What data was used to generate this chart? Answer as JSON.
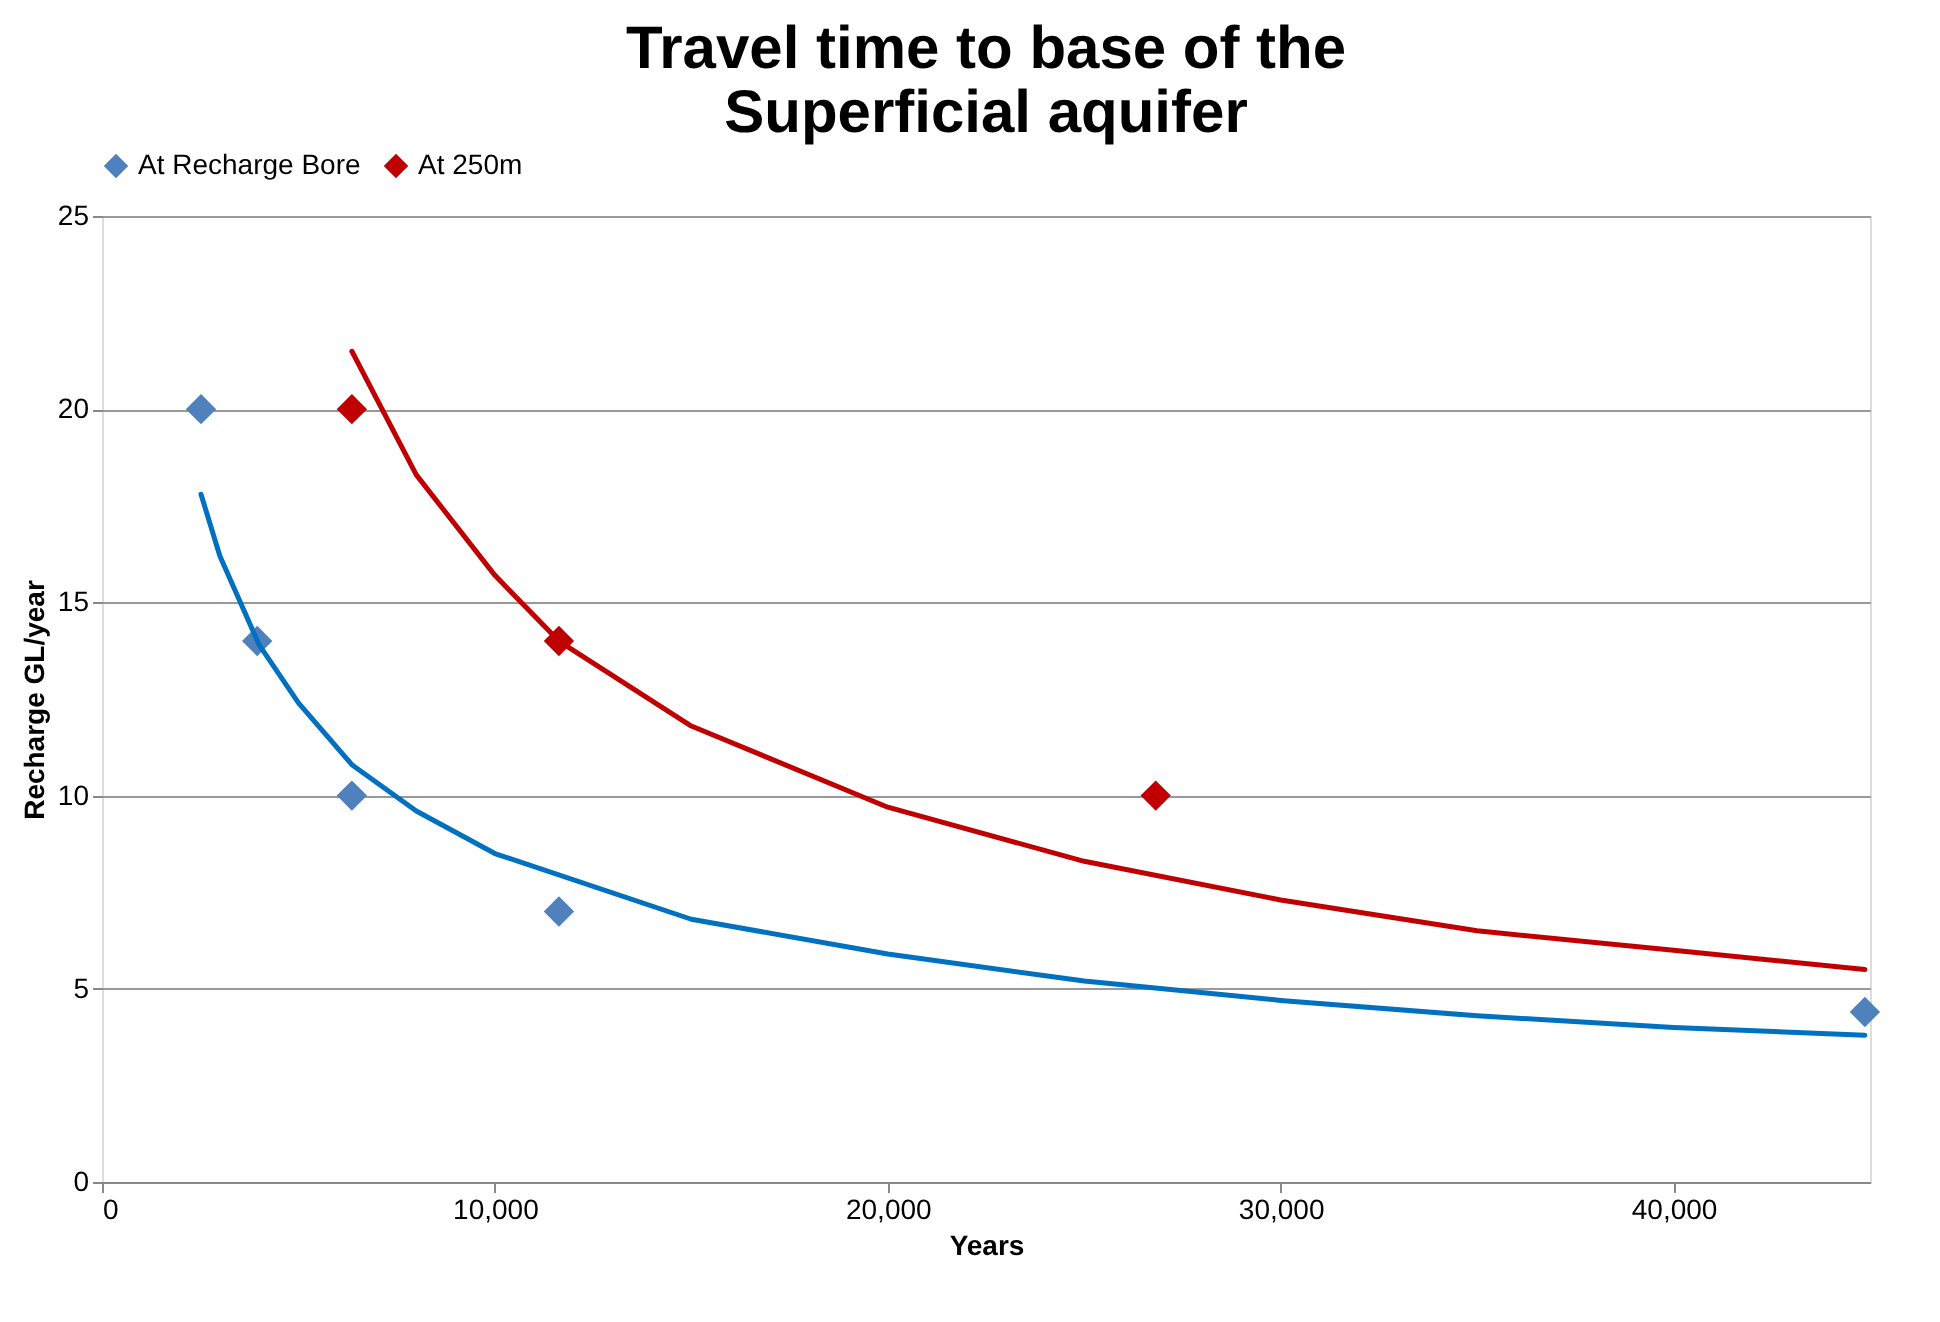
{
  "chart_data": {
    "type": "scatter",
    "title": "Travel time to base of the\nSuperficial aquifer",
    "xlabel": "Years",
    "ylabel": "Recharge GL/year",
    "xlim": [
      0,
      45000
    ],
    "xticks": [
      0,
      {
        "value": 10000,
        "label": "10,000"
      },
      {
        "value": 20000,
        "label": "20,000"
      },
      {
        "value": 30000,
        "label": "30,000"
      },
      {
        "value": 40000,
        "label": "40,000"
      }
    ],
    "ylim": [
      0,
      25
    ],
    "yticks": [
      0,
      5,
      10,
      15,
      20,
      25
    ],
    "grid": "y",
    "legend": "top",
    "marker": "diamond",
    "series": [
      {
        "name": "At Recharge Bore",
        "color": "#4f81bd",
        "x": [
          2520,
          3950,
          6360,
          11630,
          44870
        ],
        "values": [
          20,
          14,
          10,
          7,
          4.4
        ]
      },
      {
        "name": "At  250m",
        "color": "#c00000",
        "x": [
          6360,
          11630,
          26820
        ],
        "values": [
          20,
          14,
          10
        ]
      },
      {
        "color": "#0070c0",
        "type": "line",
        "line_style": "solid",
        "marker": "none",
        "x": [
          2520,
          3000,
          4000,
          5000,
          6360,
          8000,
          10000,
          15000,
          20000,
          25000,
          30000,
          35000,
          40000,
          44870
        ],
        "values": [
          17.8,
          16.2,
          13.9,
          12.4,
          10.8,
          9.6,
          8.5,
          6.8,
          5.9,
          5.2,
          4.7,
          4.3,
          4.0,
          3.8
        ]
      },
      {
        "color": "#c00000",
        "type": "line",
        "line_style": "solid",
        "marker": "none",
        "x": [
          6360,
          8000,
          10000,
          11630,
          15000,
          20000,
          25000,
          30000,
          35000,
          40000,
          44870
        ],
        "values": [
          21.5,
          18.3,
          15.7,
          14.0,
          11.8,
          9.7,
          8.3,
          7.3,
          6.5,
          6.0,
          5.5
        ]
      }
    ]
  }
}
